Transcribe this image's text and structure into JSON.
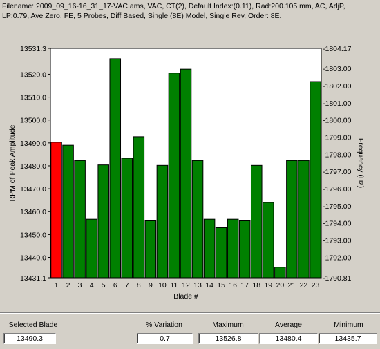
{
  "header": {
    "line1": "Filename: 2009_09_16-16_31_17-VAC.ams, VAC, CT(2), Default Index:(0.11), Rad:200.105 mm, AC, AdjP,",
    "line2": "LP:0.79, Ave Zero, FE,  5 Probes, Diff Based, Single (8E) Model, Single Rev, Order: 8E."
  },
  "chart_data": {
    "type": "bar",
    "title": "",
    "xlabel": "Blade #",
    "ylabel": "RPM of Peak Amplitude",
    "y2label": "Frequency (Hz)",
    "categories": [
      "1",
      "2",
      "3",
      "4",
      "5",
      "6",
      "7",
      "8",
      "9",
      "10",
      "11",
      "12",
      "13",
      "14",
      "15",
      "16",
      "17",
      "18",
      "19",
      "20",
      "21",
      "22",
      "23"
    ],
    "values": [
      13490.3,
      13489.0,
      13482.3,
      13456.7,
      13480.4,
      13526.8,
      13483.3,
      13492.7,
      13456.0,
      13480.2,
      13520.5,
      13522.2,
      13482.3,
      13456.7,
      13453.0,
      13456.7,
      13456.0,
      13480.2,
      13464.0,
      13435.7,
      13482.3,
      13482.3,
      13516.8
    ],
    "highlight_index": 0,
    "ylim": [
      13431.1,
      13531.3
    ],
    "y_ticks": [
      "13531.3",
      "13520.0",
      "13510.0",
      "13500.0",
      "13490.0",
      "13480.0",
      "13470.0",
      "13460.0",
      "13450.0",
      "13440.0",
      "13431.1"
    ],
    "y2lim": [
      1790.81,
      1804.17
    ],
    "y2_ticks": [
      "-1804.17",
      "-1803.00",
      "-1802.00",
      "-1801.00",
      "-1800.00",
      "-1799.00",
      "-1798.00",
      "-1797.00",
      "-1796.00",
      "-1795.00",
      "-1794.00",
      "-1793.00",
      "-1792.00",
      "-1790.81"
    ],
    "grid": false,
    "colors": {
      "bar": "#008000",
      "highlight": "#ff0000",
      "plot_bg": "#ffffff"
    }
  },
  "stats": {
    "selected_label": "Selected Blade",
    "selected_value": "13490.3",
    "variation_label": "% Variation",
    "variation_value": "0.7",
    "maximum_label": "Maximum",
    "maximum_value": "13526.8",
    "average_label": "Average",
    "average_value": "13480.4",
    "minimum_label": "Minimum",
    "minimum_value": "13435.7"
  }
}
